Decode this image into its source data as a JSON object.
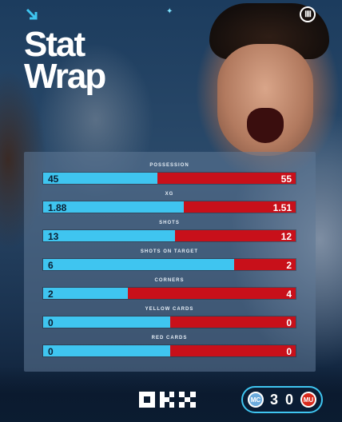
{
  "header": {
    "title_line1": "Stat",
    "title_line2": "Wrap"
  },
  "colors": {
    "home": "#3fc5f0",
    "away": "#c8101a",
    "accent": "#3fc5f0"
  },
  "stats": [
    {
      "label": "POSSESSION",
      "home": "45",
      "away": "55",
      "home_share": 0.45
    },
    {
      "label": "XG",
      "home": "1.88",
      "away": "1.51",
      "home_share": 0.555
    },
    {
      "label": "SHOTS",
      "home": "13",
      "away": "12",
      "home_share": 0.52
    },
    {
      "label": "SHOTS ON TARGET",
      "home": "6",
      "away": "2",
      "home_share": 0.75
    },
    {
      "label": "CORNERS",
      "home": "2",
      "away": "4",
      "home_share": 0.333
    },
    {
      "label": "YELLOW CARDS",
      "home": "0",
      "away": "0",
      "home_share": 0.5
    },
    {
      "label": "RED CARDS",
      "home": "0",
      "away": "0",
      "home_share": 0.5
    }
  ],
  "score": {
    "home": "3",
    "away": "0",
    "home_crest_icon": "manchester-city-crest-icon",
    "away_crest_icon": "manchester-united-crest-icon"
  },
  "sponsor_icon": "okx-logo-icon"
}
